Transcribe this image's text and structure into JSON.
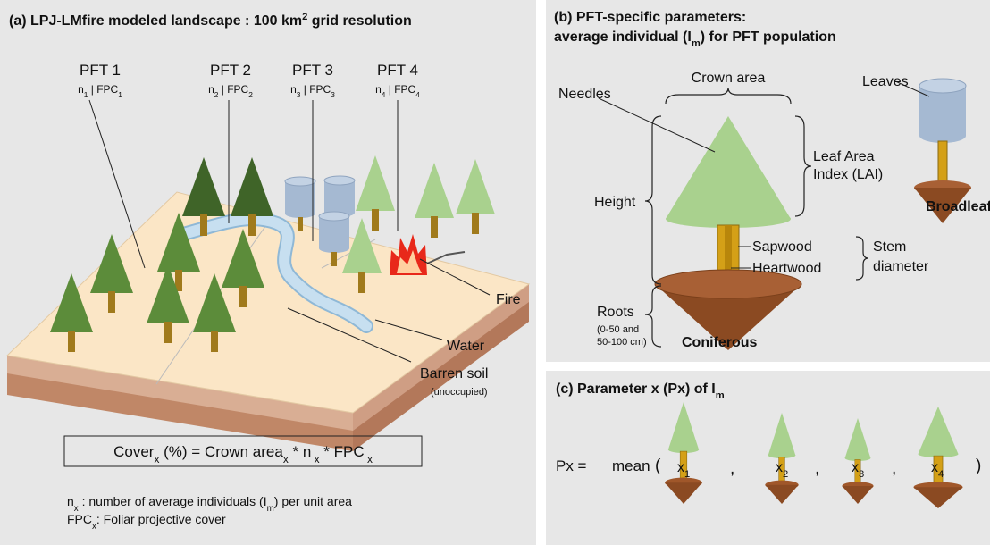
{
  "panel_a": {
    "title": [
      "(a) LPJ-LMfire modeled landscape : 100 km",
      "2",
      " grid resolution"
    ],
    "pfts": [
      {
        "name": "PFT 1",
        "density": [
          "n",
          "1",
          " | FPC",
          "1"
        ]
      },
      {
        "name": "PFT 2",
        "density": [
          "n",
          "2",
          " | FPC",
          "2"
        ]
      },
      {
        "name": "PFT 3",
        "density": [
          "n",
          "3",
          " | FPC",
          "3"
        ]
      },
      {
        "name": "PFT 4",
        "density": [
          "n",
          "4",
          " | FPC",
          "4"
        ]
      }
    ],
    "fire": "Fire",
    "water": "Water",
    "barren": "Barren soil",
    "barren_note": "(unoccupied)",
    "formula": [
      "Cover",
      "x",
      " (%) = Crown area",
      "x",
      "  * n",
      " x",
      " * FPC",
      " x"
    ],
    "legend": [
      [
        "n",
        "x",
        " : number of average individuals (I",
        "m",
        ") per unit area"
      ],
      [
        "FPC",
        "x",
        ": Foliar projective cover"
      ]
    ]
  },
  "panel_b": {
    "title_line1": "(b) PFT-specific parameters:",
    "title_line2": [
      "average individual (I",
      "m",
      ") for PFT population"
    ],
    "crown_area": "Crown area",
    "needles": "Needles",
    "leaves": "Leaves",
    "lai_line1": "Leaf Area",
    "lai_line2": "Index (LAI)",
    "height": "Height",
    "broadleaf": "Broadleaf",
    "sapwood": "Sapwood",
    "heartwood": "Heartwood",
    "stem_line1": "Stem",
    "stem_line2": "diameter",
    "roots": "Roots",
    "roots_line1": "(0-50 and",
    "roots_line2": "50-100 cm)",
    "coniferous": "Coniferous"
  },
  "panel_c": {
    "title": [
      "(c) Parameter x (Px) of I",
      "m"
    ],
    "lhs": "Px  =",
    "func": "mean",
    "open": "(",
    "comma": ",",
    "close": ")",
    "items": [
      [
        "x",
        "1"
      ],
      [
        "x",
        "2"
      ],
      [
        "x",
        "3"
      ],
      [
        "x",
        "4"
      ]
    ]
  }
}
